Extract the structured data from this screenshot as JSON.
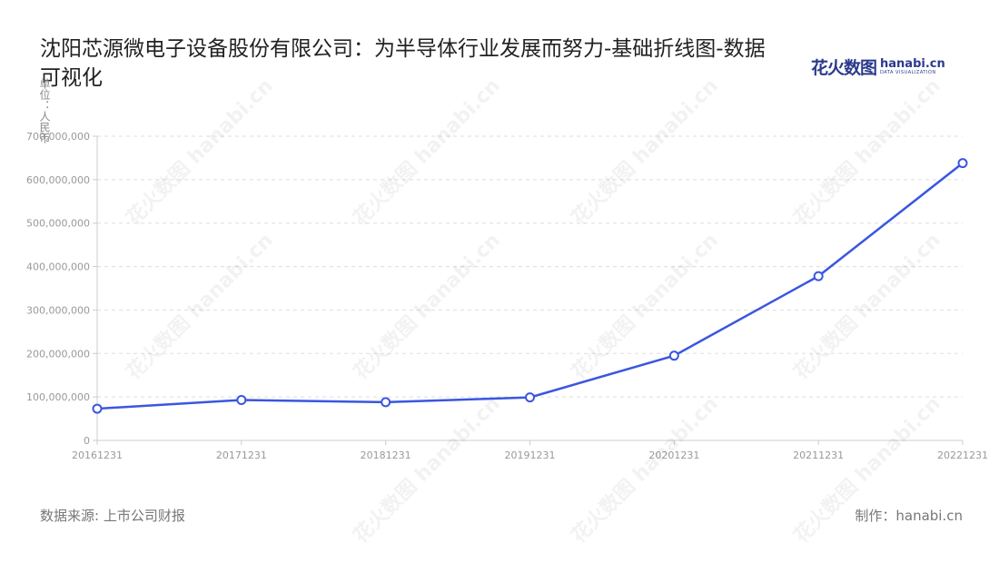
{
  "title": "沈阳芯源微电子设备股份有限公司：为半导体行业发展而努力-基础折线图-数据可视化",
  "logo": {
    "cn": "花火数图",
    "en": "hanabi.cn",
    "tagline": "DATA VISUALIZATION"
  },
  "footer": {
    "source": "数据来源: 上市公司财报",
    "credit": "制作：hanabi.cn"
  },
  "watermark_text": "花火数图 hanabi.cn",
  "colors": {
    "line": "#3a56e0",
    "marker_fill": "#ffffff",
    "grid": "#dddddd",
    "axis_text": "#999999"
  },
  "chart_data": {
    "type": "line",
    "title": "沈阳芯源微电子设备股份有限公司：为半导体行业发展而努力-基础折线图-数据可视化",
    "ylabel": "单位：人民币",
    "xlabel": "",
    "categories": [
      "20161231",
      "20171231",
      "20181231",
      "20191231",
      "20201231",
      "20211231",
      "20221231"
    ],
    "series": [
      {
        "values": [
          73000000,
          93000000,
          88000000,
          99000000,
          195000000,
          378000000,
          638000000
        ]
      }
    ],
    "ylim": [
      0,
      700000000
    ],
    "yticks": [
      0,
      100000000,
      200000000,
      300000000,
      400000000,
      500000000,
      600000000,
      700000000
    ],
    "ytick_labels": [
      "0",
      "100,000,000",
      "200,000,000",
      "300,000,000",
      "400,000,000",
      "500,000,000",
      "600,000,000",
      "700,000,000"
    ],
    "grid": true,
    "legend": "none"
  }
}
